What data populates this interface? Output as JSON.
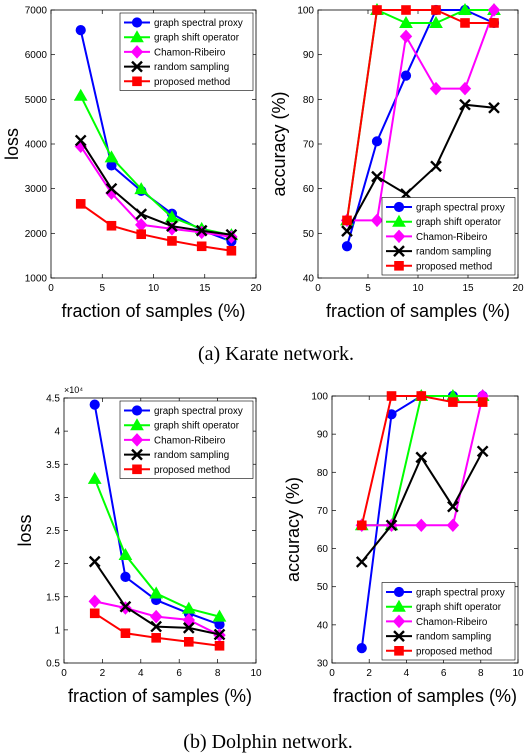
{
  "captions": {
    "karate": "(a) Karate network.",
    "dolphin": "(b) Dolphin network."
  },
  "legend_labels": [
    "graph spectral proxy",
    "graph shift operator",
    "Chamon-Ribeiro",
    "random sampling",
    "proposed method"
  ],
  "colors": {
    "graph spectral proxy": "#0000ff",
    "graph shift operator": "#00ff00",
    "Chamon-Ribeiro": "#ff00ff",
    "random sampling": "#000000",
    "proposed method": "#ff0000"
  },
  "chart_data": [
    {
      "type": "line",
      "panel": "karate-loss",
      "xlabel": "fraction of samples (%)",
      "ylabel": "loss",
      "xlim": [
        0,
        20
      ],
      "ylim": [
        1000,
        7000
      ],
      "xticks": [
        0,
        5,
        10,
        15,
        20
      ],
      "yticks": [
        1000,
        2000,
        3000,
        4000,
        5000,
        6000,
        7000
      ],
      "multiplier": "",
      "legend_position": "top-right",
      "series": [
        {
          "name": "graph spectral proxy",
          "marker": "circle",
          "x": [
            2.9,
            5.9,
            8.8,
            11.8,
            14.7,
            17.6
          ],
          "y": [
            6550,
            3520,
            2950,
            2440,
            2070,
            1820
          ]
        },
        {
          "name": "graph shift operator",
          "marker": "triangle",
          "x": [
            2.9,
            5.9,
            8.8,
            11.8,
            14.7,
            17.6
          ],
          "y": [
            5080,
            3700,
            2990,
            2360,
            2100,
            1960
          ]
        },
        {
          "name": "Chamon-Ribeiro",
          "marker": "diamond",
          "x": [
            2.9,
            5.9,
            8.8,
            11.8,
            14.7,
            17.6
          ],
          "y": [
            3950,
            2900,
            2190,
            2100,
            2020,
            1920
          ]
        },
        {
          "name": "random sampling",
          "marker": "x",
          "x": [
            2.9,
            5.9,
            8.8,
            11.8,
            14.7,
            17.6
          ],
          "y": [
            4080,
            3000,
            2430,
            2160,
            2060,
            1970
          ]
        },
        {
          "name": "proposed method",
          "marker": "square",
          "x": [
            2.9,
            5.9,
            8.8,
            11.8,
            14.7,
            17.6
          ],
          "y": [
            2660,
            2170,
            1980,
            1830,
            1710,
            1610
          ]
        }
      ]
    },
    {
      "type": "line",
      "panel": "karate-accuracy",
      "xlabel": "fraction of samples (%)",
      "ylabel": "accuracy (%)",
      "xlim": [
        0,
        20
      ],
      "ylim": [
        40,
        100
      ],
      "xticks": [
        0,
        5,
        10,
        15,
        20
      ],
      "yticks": [
        40,
        50,
        60,
        70,
        80,
        90,
        100
      ],
      "multiplier": "",
      "legend_position": "bottom-right",
      "series": [
        {
          "name": "graph spectral proxy",
          "marker": "circle",
          "x": [
            2.9,
            5.9,
            8.8,
            11.8,
            14.7,
            17.6
          ],
          "y": [
            47.1,
            70.6,
            85.3,
            100,
            100,
            97.1
          ]
        },
        {
          "name": "graph shift operator",
          "marker": "triangle",
          "x": [
            2.9,
            5.9,
            8.8,
            11.8,
            14.7,
            17.6
          ],
          "y": [
            52.9,
            100,
            97.1,
            97.1,
            100,
            100
          ]
        },
        {
          "name": "Chamon-Ribeiro",
          "marker": "diamond",
          "x": [
            2.9,
            5.9,
            8.8,
            11.8,
            14.7,
            17.6
          ],
          "y": [
            52.9,
            52.9,
            94.1,
            82.4,
            82.4,
            100
          ]
        },
        {
          "name": "random sampling",
          "marker": "x",
          "x": [
            2.9,
            5.9,
            8.8,
            11.8,
            14.7,
            17.6
          ],
          "y": [
            50.5,
            62.7,
            58.8,
            65.0,
            78.8,
            78.1
          ]
        },
        {
          "name": "proposed method",
          "marker": "square",
          "x": [
            2.9,
            5.9,
            8.8,
            11.8,
            14.7,
            17.6
          ],
          "y": [
            52.9,
            100,
            100,
            100,
            97.1,
            97.1
          ]
        }
      ]
    },
    {
      "type": "line",
      "panel": "dolphin-loss",
      "xlabel": "fraction of samples (%)",
      "ylabel": "loss",
      "xlim": [
        0,
        10
      ],
      "ylim": [
        0.5,
        4.5
      ],
      "xticks": [
        0,
        2,
        4,
        6,
        8,
        10
      ],
      "yticks": [
        0.5,
        1,
        1.5,
        2,
        2.5,
        3,
        3.5,
        4,
        4.5
      ],
      "multiplier": "×10⁴",
      "legend_position": "top-right",
      "series": [
        {
          "name": "graph spectral proxy",
          "marker": "circle",
          "x": [
            1.6,
            3.2,
            4.8,
            6.5,
            8.1
          ],
          "y": [
            4.4,
            1.8,
            1.45,
            1.25,
            1.08
          ]
        },
        {
          "name": "graph shift operator",
          "marker": "triangle",
          "x": [
            1.6,
            3.2,
            4.8,
            6.5,
            8.1
          ],
          "y": [
            3.28,
            2.13,
            1.55,
            1.32,
            1.2
          ]
        },
        {
          "name": "Chamon-Ribeiro",
          "marker": "diamond",
          "x": [
            1.6,
            3.2,
            4.8,
            6.5,
            8.1
          ],
          "y": [
            1.43,
            1.33,
            1.2,
            1.15,
            0.92
          ]
        },
        {
          "name": "random sampling",
          "marker": "x",
          "x": [
            1.6,
            3.2,
            4.8,
            6.5,
            8.1
          ],
          "y": [
            2.03,
            1.35,
            1.05,
            1.03,
            0.93
          ]
        },
        {
          "name": "proposed method",
          "marker": "square",
          "x": [
            1.6,
            3.2,
            4.8,
            6.5,
            8.1
          ],
          "y": [
            1.25,
            0.95,
            0.88,
            0.82,
            0.76
          ]
        }
      ]
    },
    {
      "type": "line",
      "panel": "dolphin-accuracy",
      "xlabel": "fraction of samples (%)",
      "ylabel": "accuracy (%)",
      "xlim": [
        0,
        10
      ],
      "ylim": [
        30,
        100
      ],
      "xticks": [
        0,
        2,
        4,
        6,
        8,
        10
      ],
      "yticks": [
        30,
        40,
        50,
        60,
        70,
        80,
        90,
        100
      ],
      "multiplier": "",
      "legend_position": "bottom-right",
      "series": [
        {
          "name": "graph spectral proxy",
          "marker": "circle",
          "x": [
            1.6,
            3.2,
            4.8,
            6.5,
            8.1
          ],
          "y": [
            33.9,
            95.2,
            100,
            100,
            100
          ]
        },
        {
          "name": "graph shift operator",
          "marker": "triangle",
          "x": [
            1.6,
            3.2,
            4.8,
            6.5,
            8.1
          ],
          "y": [
            66.1,
            66.1,
            100,
            100,
            100
          ]
        },
        {
          "name": "Chamon-Ribeiro",
          "marker": "diamond",
          "x": [
            1.6,
            3.2,
            4.8,
            6.5,
            8.1
          ],
          "y": [
            66.1,
            66.1,
            66.1,
            66.1,
            100
          ]
        },
        {
          "name": "random sampling",
          "marker": "x",
          "x": [
            1.6,
            3.2,
            4.8,
            6.5,
            8.1
          ],
          "y": [
            56.5,
            66.1,
            83.9,
            71.0,
            85.5
          ]
        },
        {
          "name": "proposed method",
          "marker": "square",
          "x": [
            1.6,
            3.2,
            4.8,
            6.5,
            8.1
          ],
          "y": [
            66.1,
            100,
            100,
            98.4,
            98.4
          ]
        }
      ]
    }
  ]
}
